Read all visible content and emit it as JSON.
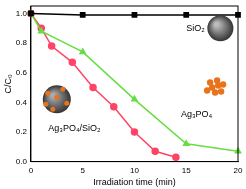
{
  "chart_data": {
    "type": "line",
    "x_label": "Irradiation time (min)",
    "y_label": "C/C₀",
    "xlim": [
      0,
      20
    ],
    "xticks": [
      0,
      5,
      10,
      15,
      20
    ],
    "ylim": [
      0,
      1.05
    ],
    "yticks": [
      {
        "value": 0,
        "label": "0.0"
      },
      0.2,
      0.4,
      0.6,
      0.8,
      {
        "value": 1,
        "label": "1.0"
      }
    ],
    "grid": false,
    "series": [
      {
        "name": "SiO₂",
        "color": "#000000",
        "marker": "square",
        "x": [
          0,
          5,
          10,
          15,
          20
        ],
        "values": [
          1.0,
          0.99,
          0.99,
          0.99,
          0.99
        ]
      },
      {
        "name": "Ag₃PO₄",
        "color": "#66dd44",
        "marker": "triangle",
        "x": [
          0,
          1,
          5,
          10,
          15,
          20
        ],
        "values": [
          1.0,
          0.88,
          0.74,
          0.42,
          0.12,
          0.07
        ]
      },
      {
        "name": "Ag₃PO₄/SiO₂",
        "color": "#ff4466",
        "marker": "circle",
        "x": [
          0,
          1,
          2,
          4,
          6,
          8,
          10,
          12,
          14
        ],
        "values": [
          1.0,
          0.9,
          0.78,
          0.67,
          0.5,
          0.37,
          0.2,
          0.07,
          0.03
        ]
      }
    ]
  }
}
